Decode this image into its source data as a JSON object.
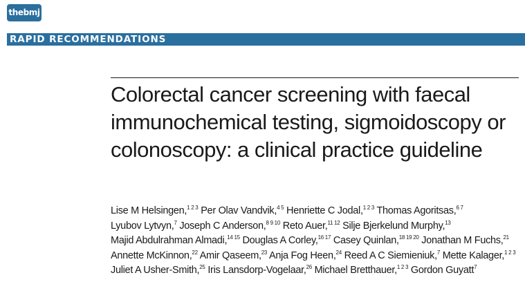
{
  "journal": {
    "logo_text": "thebmj",
    "colors": {
      "brand": "#2a6f9e"
    }
  },
  "section": {
    "label": "RAPID RECOMMENDATIONS"
  },
  "article": {
    "title": "Colorectal cancer screening with faecal immunochemical testing, sigmoidoscopy or colonoscopy: a clinical practice guideline"
  },
  "authors": [
    {
      "name": "Lise M Helsingen,",
      "aff": "1 2 3"
    },
    {
      "name": "Per Olav Vandvik,",
      "aff": "4 5"
    },
    {
      "name": "Henriette C Jodal,",
      "aff": "1 2 3"
    },
    {
      "name": "Thomas Agoritsas,",
      "aff": "6 7"
    },
    {
      "name": "Lyubov Lytvyn,",
      "aff": "7"
    },
    {
      "name": "Joseph C Anderson,",
      "aff": "8 9 10"
    },
    {
      "name": "Reto Auer,",
      "aff": "11 12"
    },
    {
      "name": "Silje Bjerkelund Murphy,",
      "aff": "13"
    },
    {
      "name": "Majid Abdulrahman Almadi,",
      "aff": "14 15"
    },
    {
      "name": "Douglas A Corley,",
      "aff": "16 17"
    },
    {
      "name": "Casey Quinlan,",
      "aff": "18 19 20"
    },
    {
      "name": "Jonathan M Fuchs,",
      "aff": "21"
    },
    {
      "name": "Annette McKinnon,",
      "aff": "22"
    },
    {
      "name": "Amir Qaseem,",
      "aff": "23"
    },
    {
      "name": "Anja Fog Heen,",
      "aff": "24"
    },
    {
      "name": "Reed A C Siemieniuk,",
      "aff": "7"
    },
    {
      "name": "Mette Kalager,",
      "aff": "1 2 3"
    },
    {
      "name": "Juliet A Usher-Smith,",
      "aff": "25"
    },
    {
      "name": "Iris Lansdorp-Vogelaar,",
      "aff": "26"
    },
    {
      "name": "Michael Bretthauer,",
      "aff": "1 2 3"
    },
    {
      "name": "Gordon Guyatt",
      "aff": "7"
    }
  ]
}
